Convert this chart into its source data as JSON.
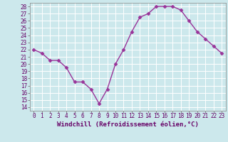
{
  "x": [
    0,
    1,
    2,
    3,
    4,
    5,
    6,
    7,
    8,
    9,
    10,
    11,
    12,
    13,
    14,
    15,
    16,
    17,
    18,
    19,
    20,
    21,
    22,
    23
  ],
  "y": [
    22,
    21.5,
    20.5,
    20.5,
    19.5,
    17.5,
    17.5,
    16.5,
    14.5,
    16.5,
    20,
    22,
    24.5,
    26.5,
    27,
    28,
    28,
    28,
    27.5,
    26,
    24.5,
    23.5,
    22.5,
    21.5
  ],
  "line_color": "#993399",
  "marker": "D",
  "marker_size": 2.5,
  "bg_color": "#cce8ec",
  "grid_color": "#ffffff",
  "xlabel": "Windchill (Refroidissement éolien,°C)",
  "ylabel": "",
  "ylim": [
    13.5,
    28.5
  ],
  "xlim": [
    -0.5,
    23.5
  ],
  "yticks": [
    14,
    15,
    16,
    17,
    18,
    19,
    20,
    21,
    22,
    23,
    24,
    25,
    26,
    27,
    28
  ],
  "xticks": [
    0,
    1,
    2,
    3,
    4,
    5,
    6,
    7,
    8,
    9,
    10,
    11,
    12,
    13,
    14,
    15,
    16,
    17,
    18,
    19,
    20,
    21,
    22,
    23
  ],
  "tick_fontsize": 5.5,
  "xlabel_fontsize": 6.5,
  "line_width": 1.0
}
